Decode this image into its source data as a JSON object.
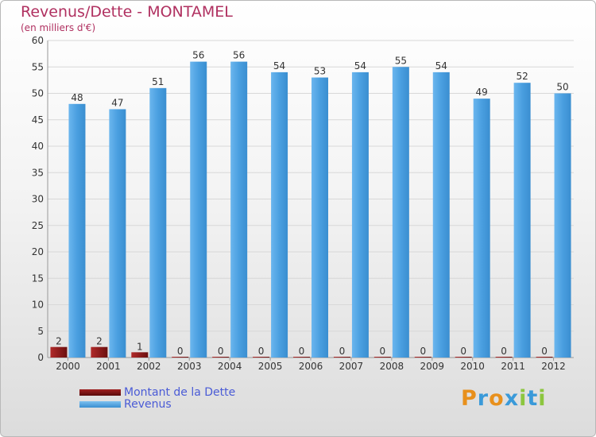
{
  "header": {
    "title": "Revenus/Dette - MONTAMEL",
    "subtitle": "(en milliers d'€)"
  },
  "colors": {
    "debt": "#8b1a1a",
    "revenue": "#4a9fe0",
    "title": "#b03060",
    "legend_text": "#4a5bd6"
  },
  "legend": {
    "items": [
      {
        "label": "Montant de la Dette",
        "color": "#6b0f0f"
      },
      {
        "label": "Revenus",
        "color": "#4a9fe0"
      }
    ]
  },
  "logo": {
    "letters": [
      "P",
      "r",
      "o",
      "x",
      "i",
      "t",
      "i"
    ],
    "colors": [
      "#e8901c",
      "#3a9ad9",
      "#e8901c",
      "#3a9ad9",
      "#8cc63f",
      "#3a9ad9",
      "#8cc63f"
    ]
  },
  "chart_data": {
    "type": "bar",
    "title": "Revenus/Dette - MONTAMEL",
    "ylabel": "(en milliers d'€)",
    "xlabel": "",
    "ylim": [
      0,
      60
    ],
    "yticks": [
      0,
      5,
      10,
      15,
      20,
      25,
      30,
      35,
      40,
      45,
      50,
      55,
      60
    ],
    "grid": true,
    "categories": [
      "2000",
      "2001",
      "2002",
      "2003",
      "2004",
      "2005",
      "2006",
      "2007",
      "2008",
      "2009",
      "2010",
      "2011",
      "2012"
    ],
    "series": [
      {
        "name": "Montant de la Dette",
        "values": [
          2,
          2,
          1,
          0,
          0,
          0,
          0,
          0,
          0,
          0,
          0,
          0,
          0
        ]
      },
      {
        "name": "Revenus",
        "values": [
          48,
          47,
          51,
          56,
          56,
          54,
          53,
          54,
          55,
          54,
          49,
          52,
          50
        ]
      }
    ]
  }
}
